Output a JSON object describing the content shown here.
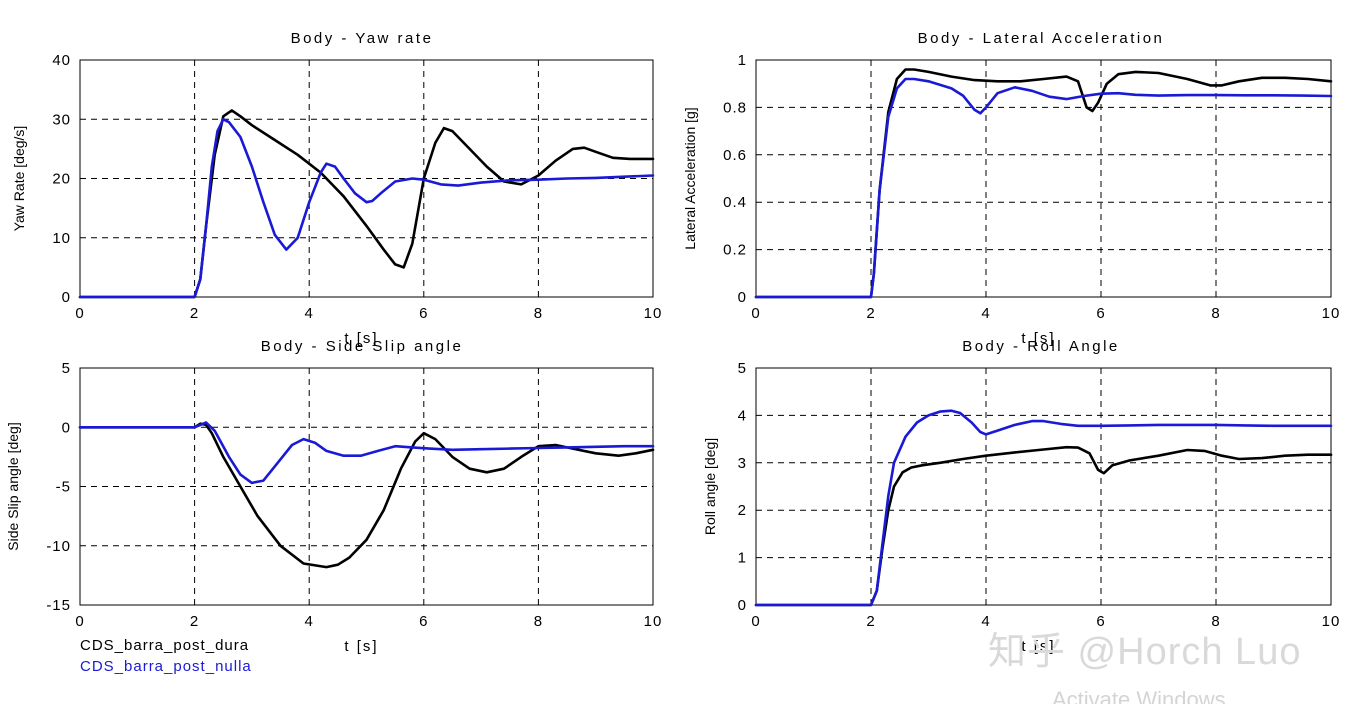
{
  "chart_data": [
    {
      "type": "line",
      "title": "Body - Yaw rate",
      "xlabel": "t  [s]",
      "ylabel": "Yaw Rate [deg/s]",
      "xlim": [
        0,
        10
      ],
      "ylim": [
        0,
        40
      ],
      "xticks": [
        "0",
        "2",
        "4",
        "6",
        "8",
        "10"
      ],
      "yticks": [
        "0",
        "10",
        "20",
        "30",
        "40"
      ],
      "grid": true,
      "series": [
        {
          "name": "CDS_barra_post_dura",
          "color": "#000000",
          "x": [
            0,
            2.0,
            2.1,
            2.2,
            2.35,
            2.5,
            2.65,
            2.8,
            3.0,
            3.4,
            3.8,
            4.2,
            4.6,
            5.0,
            5.3,
            5.5,
            5.65,
            5.8,
            6.0,
            6.2,
            6.35,
            6.5,
            6.8,
            7.1,
            7.4,
            7.7,
            8.0,
            8.3,
            8.6,
            8.8,
            9.0,
            9.3,
            9.6,
            10.0
          ],
          "y": [
            0,
            0,
            3,
            12,
            24,
            30.5,
            31.5,
            30.5,
            29,
            26.5,
            24,
            21,
            17,
            12,
            8,
            5.5,
            5,
            9,
            20,
            26,
            28.5,
            28,
            25,
            22,
            19.5,
            19,
            20.5,
            23,
            25,
            25.2,
            24.5,
            23.5,
            23.3,
            23.3
          ]
        },
        {
          "name": "CDS_barra_post_nulla",
          "color": "#1a1ad6",
          "x": [
            0,
            2.0,
            2.1,
            2.2,
            2.3,
            2.4,
            2.5,
            2.6,
            2.8,
            3.0,
            3.2,
            3.4,
            3.6,
            3.8,
            4.0,
            4.2,
            4.3,
            4.45,
            4.6,
            4.8,
            5.0,
            5.1,
            5.25,
            5.5,
            5.8,
            6.0,
            6.3,
            6.6,
            7.0,
            7.5,
            8.0,
            8.5,
            9.0,
            9.5,
            10.0
          ],
          "y": [
            0,
            0,
            3,
            12,
            22,
            28,
            30,
            29.5,
            27,
            22,
            16,
            10.5,
            8,
            10,
            16,
            21,
            22.5,
            22,
            20,
            17.5,
            16,
            16.2,
            17.5,
            19.5,
            20,
            19.8,
            19,
            18.8,
            19.3,
            19.7,
            19.8,
            20,
            20.1,
            20.3,
            20.5
          ]
        }
      ]
    },
    {
      "type": "line",
      "title": "Body - Lateral Acceleration",
      "xlabel": "t  [s]",
      "ylabel": "Lateral Acceleration [g]",
      "xlim": [
        0,
        10
      ],
      "ylim": [
        0,
        1
      ],
      "xticks": [
        "0",
        "2",
        "4",
        "6",
        "8",
        "10"
      ],
      "yticks": [
        "0",
        "0.2",
        "0.4",
        "0.6",
        "0.8",
        "1"
      ],
      "grid": true,
      "series": [
        {
          "name": "CDS_barra_post_dura",
          "color": "#000000",
          "x": [
            0,
            2.0,
            2.05,
            2.15,
            2.3,
            2.45,
            2.6,
            2.75,
            3.0,
            3.4,
            3.8,
            4.2,
            4.6,
            5.0,
            5.4,
            5.6,
            5.75,
            5.85,
            5.95,
            6.1,
            6.3,
            6.6,
            7.0,
            7.5,
            7.9,
            8.1,
            8.4,
            8.8,
            9.2,
            9.6,
            10.0
          ],
          "y": [
            0,
            0,
            0.1,
            0.45,
            0.78,
            0.92,
            0.96,
            0.96,
            0.95,
            0.93,
            0.915,
            0.91,
            0.91,
            0.92,
            0.93,
            0.91,
            0.8,
            0.785,
            0.82,
            0.9,
            0.94,
            0.95,
            0.945,
            0.92,
            0.893,
            0.893,
            0.91,
            0.925,
            0.925,
            0.92,
            0.91
          ]
        },
        {
          "name": "CDS_barra_post_nulla",
          "color": "#1a1ad6",
          "x": [
            0,
            2.0,
            2.05,
            2.15,
            2.3,
            2.45,
            2.6,
            2.75,
            3.0,
            3.4,
            3.6,
            3.8,
            3.9,
            4.0,
            4.2,
            4.5,
            4.8,
            5.1,
            5.4,
            5.7,
            6.0,
            6.3,
            6.6,
            7.0,
            7.5,
            8.0,
            8.5,
            9.0,
            9.5,
            10.0
          ],
          "y": [
            0,
            0,
            0.1,
            0.45,
            0.76,
            0.88,
            0.92,
            0.92,
            0.91,
            0.88,
            0.85,
            0.79,
            0.775,
            0.8,
            0.86,
            0.885,
            0.87,
            0.845,
            0.835,
            0.848,
            0.858,
            0.86,
            0.853,
            0.85,
            0.852,
            0.852,
            0.851,
            0.851,
            0.85,
            0.848
          ]
        }
      ]
    },
    {
      "type": "line",
      "title": "Body - Side Slip angle",
      "xlabel": "t  [s]",
      "ylabel": "Side Slip angle [deg]",
      "xlim": [
        0,
        10
      ],
      "ylim": [
        -15,
        5
      ],
      "xticks": [
        "0",
        "2",
        "4",
        "6",
        "8",
        "10"
      ],
      "yticks": [
        "-15",
        "-10",
        "-5",
        "0",
        "5"
      ],
      "grid": true,
      "series": [
        {
          "name": "CDS_barra_post_dura",
          "color": "#000000",
          "x": [
            0,
            2.0,
            2.1,
            2.2,
            2.3,
            2.5,
            2.8,
            3.1,
            3.5,
            3.9,
            4.3,
            4.5,
            4.7,
            5.0,
            5.3,
            5.6,
            5.85,
            6.0,
            6.2,
            6.5,
            6.8,
            7.1,
            7.4,
            7.7,
            8.0,
            8.3,
            8.6,
            9.0,
            9.4,
            9.7,
            10.0
          ],
          "y": [
            0,
            0,
            0.3,
            0.2,
            -0.5,
            -2.5,
            -5,
            -7.5,
            -10,
            -11.5,
            -11.8,
            -11.6,
            -11,
            -9.5,
            -7,
            -3.5,
            -1.2,
            -0.5,
            -1,
            -2.5,
            -3.5,
            -3.8,
            -3.5,
            -2.5,
            -1.6,
            -1.5,
            -1.8,
            -2.2,
            -2.4,
            -2.2,
            -1.9
          ]
        },
        {
          "name": "CDS_barra_post_nulla",
          "color": "#1a1ad6",
          "x": [
            0,
            2.0,
            2.1,
            2.2,
            2.35,
            2.6,
            2.8,
            3.0,
            3.2,
            3.45,
            3.7,
            3.9,
            4.1,
            4.3,
            4.6,
            4.9,
            5.2,
            5.5,
            5.8,
            6.1,
            6.5,
            7.0,
            7.5,
            8.0,
            8.5,
            9.0,
            9.5,
            10.0
          ],
          "y": [
            0,
            0,
            0.2,
            0.4,
            -0.3,
            -2.5,
            -4,
            -4.7,
            -4.5,
            -3,
            -1.5,
            -1,
            -1.3,
            -2,
            -2.4,
            -2.4,
            -2,
            -1.6,
            -1.7,
            -1.8,
            -1.9,
            -1.85,
            -1.8,
            -1.75,
            -1.7,
            -1.65,
            -1.6,
            -1.6
          ]
        }
      ]
    },
    {
      "type": "line",
      "title": "Body - Roll Angle",
      "xlabel": "t  [s]",
      "ylabel": "Roll angle [deg]",
      "xlim": [
        0,
        10
      ],
      "ylim": [
        0,
        5
      ],
      "xticks": [
        "0",
        "2",
        "4",
        "6",
        "8",
        "10"
      ],
      "yticks": [
        "0",
        "1",
        "2",
        "3",
        "4",
        "5"
      ],
      "grid": true,
      "series": [
        {
          "name": "CDS_barra_post_dura",
          "color": "#000000",
          "x": [
            0,
            2.0,
            2.1,
            2.2,
            2.3,
            2.4,
            2.55,
            2.7,
            2.9,
            3.2,
            3.6,
            4.0,
            4.5,
            5.0,
            5.4,
            5.6,
            5.8,
            5.95,
            6.05,
            6.2,
            6.5,
            7.0,
            7.5,
            7.8,
            8.1,
            8.4,
            8.8,
            9.2,
            9.6,
            10.0
          ],
          "y": [
            0,
            0,
            0.3,
            1.2,
            2.0,
            2.5,
            2.8,
            2.9,
            2.95,
            3.0,
            3.08,
            3.15,
            3.22,
            3.28,
            3.33,
            3.32,
            3.2,
            2.85,
            2.78,
            2.95,
            3.05,
            3.15,
            3.27,
            3.25,
            3.15,
            3.08,
            3.1,
            3.15,
            3.17,
            3.17
          ]
        },
        {
          "name": "CDS_barra_post_nulla",
          "color": "#1a1ad6",
          "x": [
            0,
            2.0,
            2.1,
            2.2,
            2.3,
            2.4,
            2.6,
            2.8,
            3.0,
            3.2,
            3.4,
            3.55,
            3.75,
            3.9,
            4.0,
            4.2,
            4.5,
            4.8,
            5.0,
            5.3,
            5.6,
            6.0,
            6.5,
            7.0,
            7.5,
            8.0,
            8.5,
            9.0,
            9.5,
            10.0
          ],
          "y": [
            0,
            0,
            0.3,
            1.3,
            2.3,
            3.0,
            3.55,
            3.85,
            4.0,
            4.08,
            4.1,
            4.05,
            3.85,
            3.65,
            3.6,
            3.68,
            3.8,
            3.88,
            3.88,
            3.82,
            3.78,
            3.78,
            3.79,
            3.8,
            3.8,
            3.8,
            3.79,
            3.78,
            3.78,
            3.78
          ]
        }
      ]
    }
  ],
  "legend": {
    "items": [
      {
        "label": "CDS_barra_post_dura",
        "color": "#000000"
      },
      {
        "label": "CDS_barra_post_nulla",
        "color": "#1a1ad6"
      }
    ]
  },
  "watermark": {
    "text": "知乎 @Horch Luo",
    "activate": "Activate Windows"
  }
}
